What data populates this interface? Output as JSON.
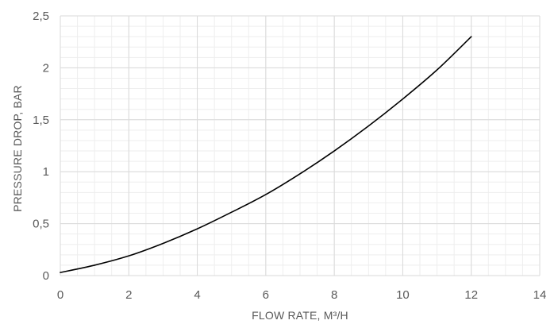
{
  "chart_data": {
    "type": "line",
    "title": "",
    "xlabel": "FLOW RATE, M³/H",
    "ylabel": "PRESSURE DROP, BAR",
    "xlim": [
      0,
      14
    ],
    "ylim": [
      0,
      2.5
    ],
    "x_ticks": [
      0,
      2,
      4,
      6,
      8,
      10,
      12,
      14
    ],
    "y_ticks": [
      0,
      0.5,
      1,
      1.5,
      2,
      2.5
    ],
    "x_tick_labels": [
      "0",
      "2",
      "4",
      "6",
      "8",
      "10",
      "12",
      "14"
    ],
    "y_tick_labels": [
      "0",
      "0,5",
      "1",
      "1,5",
      "2",
      "2,5"
    ],
    "grid": true,
    "minor_grid": true,
    "legend": "none",
    "series": [
      {
        "color": "#000000",
        "x": [
          0,
          1,
          2,
          3,
          4,
          5,
          6,
          7,
          8,
          9,
          10,
          11,
          12
        ],
        "y": [
          0.03,
          0.1,
          0.19,
          0.31,
          0.45,
          0.61,
          0.78,
          0.98,
          1.2,
          1.44,
          1.7,
          1.98,
          2.3
        ]
      }
    ],
    "colors": {
      "major_grid": "#d9d9d9",
      "minor_grid": "#eeeeee",
      "text": "#595959"
    }
  }
}
